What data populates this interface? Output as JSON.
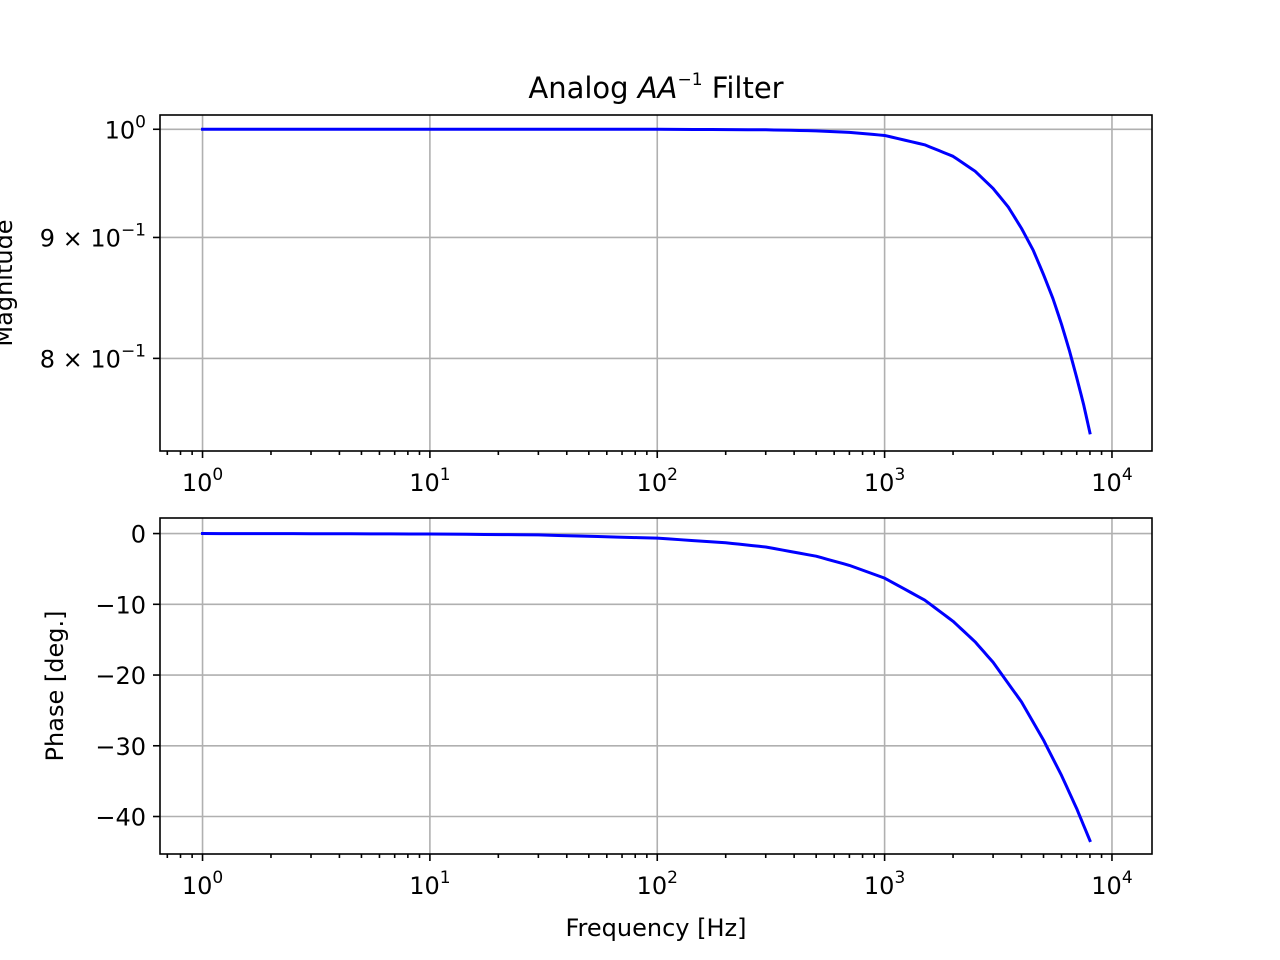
{
  "chart_data": [
    {
      "type": "line",
      "title_prefix": "Analog ",
      "title_math": "AA",
      "title_sup": "−1",
      "title_suffix": " Filter",
      "xlabel": "",
      "ylabel": "Magnitude",
      "x_scale": "log",
      "y_scale": "log",
      "xlim": [
        0.65,
        15000
      ],
      "ylim": [
        0.731,
        1.014
      ],
      "grid": true,
      "x_ticks": [
        {
          "value": 1,
          "base": "10",
          "exp": "0"
        },
        {
          "value": 10,
          "base": "10",
          "exp": "1"
        },
        {
          "value": 100,
          "base": "10",
          "exp": "2"
        },
        {
          "value": 1000,
          "base": "10",
          "exp": "3"
        },
        {
          "value": 10000,
          "base": "10",
          "exp": "4"
        }
      ],
      "y_ticks": [
        {
          "value": 1.0,
          "base": "10",
          "exp": "0"
        },
        {
          "value": 0.9,
          "base": "9 × 10",
          "exp": "−1"
        },
        {
          "value": 0.8,
          "base": "8 × 10",
          "exp": "−1"
        }
      ],
      "series": [
        {
          "color": "#0000ff",
          "x": [
            1,
            10,
            100,
            300,
            500,
            700,
            1000,
            1500,
            2000,
            2500,
            3000,
            3500,
            4000,
            4500,
            5000,
            5500,
            6000,
            6500,
            7000,
            7500,
            8000
          ],
          "y": [
            1.0,
            1.0,
            1.0,
            0.9995,
            0.9985,
            0.997,
            0.994,
            0.985,
            0.974,
            0.96,
            0.944,
            0.927,
            0.908,
            0.889,
            0.868,
            0.848,
            0.827,
            0.806,
            0.785,
            0.765,
            0.744
          ]
        }
      ]
    },
    {
      "type": "line",
      "title": "",
      "xlabel": "Frequency [Hz]",
      "ylabel": "Phase [deg.]",
      "x_scale": "log",
      "y_scale": "linear",
      "xlim": [
        0.65,
        15000
      ],
      "ylim": [
        -45.3,
        2.2
      ],
      "grid": true,
      "x_ticks": [
        {
          "value": 1,
          "base": "10",
          "exp": "0"
        },
        {
          "value": 10,
          "base": "10",
          "exp": "1"
        },
        {
          "value": 100,
          "base": "10",
          "exp": "2"
        },
        {
          "value": 1000,
          "base": "10",
          "exp": "3"
        },
        {
          "value": 10000,
          "base": "10",
          "exp": "4"
        }
      ],
      "y_ticks": [
        {
          "value": 0,
          "label": "0"
        },
        {
          "value": -10,
          "label": "−10"
        },
        {
          "value": -20,
          "label": "−20"
        },
        {
          "value": -30,
          "label": "−30"
        },
        {
          "value": -40,
          "label": "−40"
        }
      ],
      "series": [
        {
          "color": "#0000ff",
          "x": [
            1,
            3,
            10,
            30,
            100,
            200,
            300,
            500,
            700,
            1000,
            1500,
            2000,
            2500,
            3000,
            4000,
            5000,
            6000,
            7000,
            8000
          ],
          "y": [
            0,
            -0.02,
            -0.06,
            -0.19,
            -0.65,
            -1.3,
            -1.9,
            -3.2,
            -4.5,
            -6.3,
            -9.4,
            -12.4,
            -15.3,
            -18.2,
            -23.8,
            -29.2,
            -34.2,
            -38.9,
            -43.4
          ]
        }
      ]
    }
  ]
}
